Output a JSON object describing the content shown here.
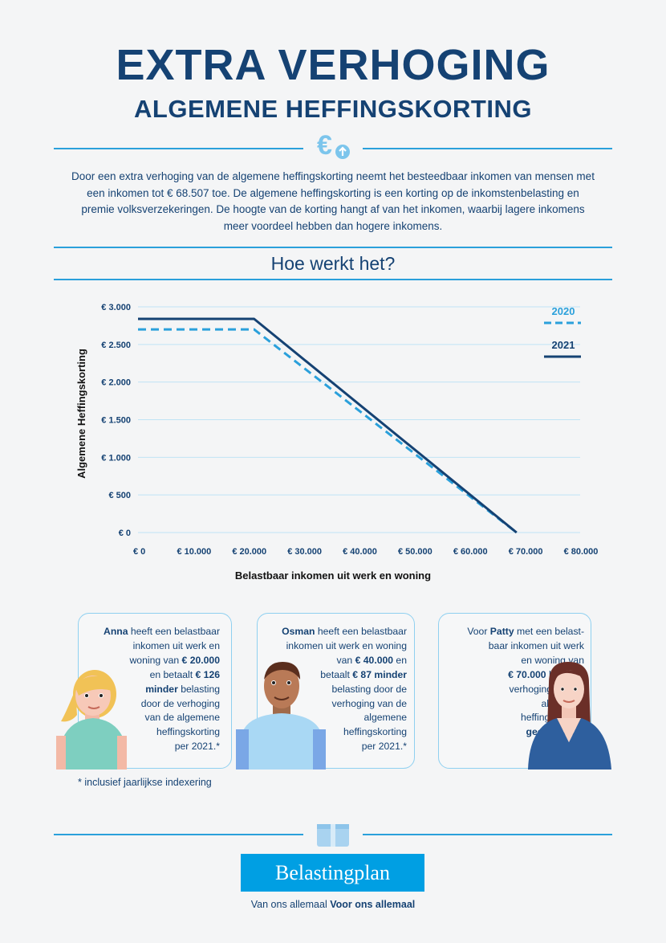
{
  "header": {
    "title_line1": "EXTRA VERHOGING",
    "title_line2": "ALGEMENE HEFFINGSKORTING",
    "icon": "euro-up-icon"
  },
  "intro": "Door een extra verhoging van de algemene heffingskorting neemt het besteedbaar inkomen van mensen met een inkomen tot € 68.507 toe. De algemene heffingskorting is een korting op de inkomstenbelasting en premie volksverzekeringen. De hoogte van de korting hangt af van het inkomen, waarbij lagere inkomens meer voordeel hebben dan hogere inkomens.",
  "subtitle": "Hoe werkt het?",
  "chart_data": {
    "type": "line",
    "title": "",
    "xlabel": "Belastbaar inkomen uit werk en woning",
    "ylabel": "Algemene Heffingskorting",
    "xlim": [
      0,
      80000
    ],
    "ylim": [
      0,
      3000
    ],
    "x_ticks": [
      0,
      10000,
      20000,
      30000,
      40000,
      50000,
      60000,
      70000,
      80000
    ],
    "x_tick_labels": [
      "€ 0",
      "€ 10.000",
      "€ 20.000",
      "€ 30.000",
      "€ 40.000",
      "€ 50.000",
      "€ 60.000",
      "€ 70.000",
      "€ 80.000"
    ],
    "y_ticks": [
      0,
      500,
      1000,
      1500,
      2000,
      2500,
      3000
    ],
    "y_tick_labels": [
      "€ 0",
      "€ 500",
      "€ 1.000",
      "€ 1.500",
      "€ 2.000",
      "€ 2.500",
      "€ 3.000"
    ],
    "grid": true,
    "legend_position": "right",
    "series": [
      {
        "name": "2020",
        "style": "dashed",
        "color": "#2aa0db",
        "x": [
          0,
          21000,
          68500
        ],
        "y": [
          2700,
          2700,
          0
        ]
      },
      {
        "name": "2021",
        "style": "solid",
        "color": "#154273",
        "x": [
          0,
          21000,
          68500
        ],
        "y": [
          2840,
          2840,
          0
        ]
      }
    ]
  },
  "cards": [
    {
      "name": "Anna",
      "lines": [
        [
          {
            "b": "Anna"
          },
          {
            "t": " heeft een belastbaar"
          }
        ],
        [
          {
            "t": "inkomen uit werk en"
          }
        ],
        [
          {
            "t": "woning van "
          },
          {
            "b": "€ 20.000"
          }
        ],
        [
          {
            "t": "en betaalt "
          },
          {
            "b": "€ 126"
          }
        ],
        [
          {
            "b": "minder"
          },
          {
            "t": " belasting"
          }
        ],
        [
          {
            "t": "door de verhoging"
          }
        ],
        [
          {
            "t": "van de algemene"
          }
        ],
        [
          {
            "t": "heffingskorting"
          }
        ],
        [
          {
            "t": "per 2021.*"
          }
        ]
      ]
    },
    {
      "name": "Osman",
      "lines": [
        [
          {
            "b": "Osman"
          },
          {
            "t": " heeft een belastbaar"
          }
        ],
        [
          {
            "t": "inkomen uit werk en woning"
          }
        ],
        [
          {
            "t": "van "
          },
          {
            "b": "€ 40.000"
          },
          {
            "t": " en"
          }
        ],
        [
          {
            "t": "betaalt "
          },
          {
            "b": "€ 87 minder"
          }
        ],
        [
          {
            "t": "belasting door de"
          }
        ],
        [
          {
            "t": "verhoging van de"
          }
        ],
        [
          {
            "t": "algemene"
          }
        ],
        [
          {
            "t": "heffingskorting"
          }
        ],
        [
          {
            "t": "per 2021.*"
          }
        ]
      ]
    },
    {
      "name": "Patty",
      "lines": [
        [
          {
            "t": "Voor "
          },
          {
            "b": "Patty"
          },
          {
            "t": " met een belast-"
          }
        ],
        [
          {
            "t": "baar inkomen uit werk"
          }
        ],
        [
          {
            "t": "en woning van"
          }
        ],
        [
          {
            "b": "€ 70.000"
          },
          {
            "t": " heeft de"
          }
        ],
        [
          {
            "t": "verhoging van de"
          }
        ],
        [
          {
            "t": "algemene"
          }
        ],
        [
          {
            "t": "heffingskorting"
          }
        ],
        [
          {
            "b": "geen effect"
          },
          {
            "t": ".*"
          }
        ]
      ]
    }
  ],
  "footnote": "* inclusief jaarlijkse indexering",
  "footer": {
    "brand": "Belastingplan",
    "tagline_regular": "Van ons allemaal ",
    "tagline_bold": "Voor ons allemaal",
    "icon": "box-icon"
  },
  "colors": {
    "dark_blue": "#154273",
    "light_blue": "#2aa0db",
    "brand_blue": "#009fe3"
  }
}
